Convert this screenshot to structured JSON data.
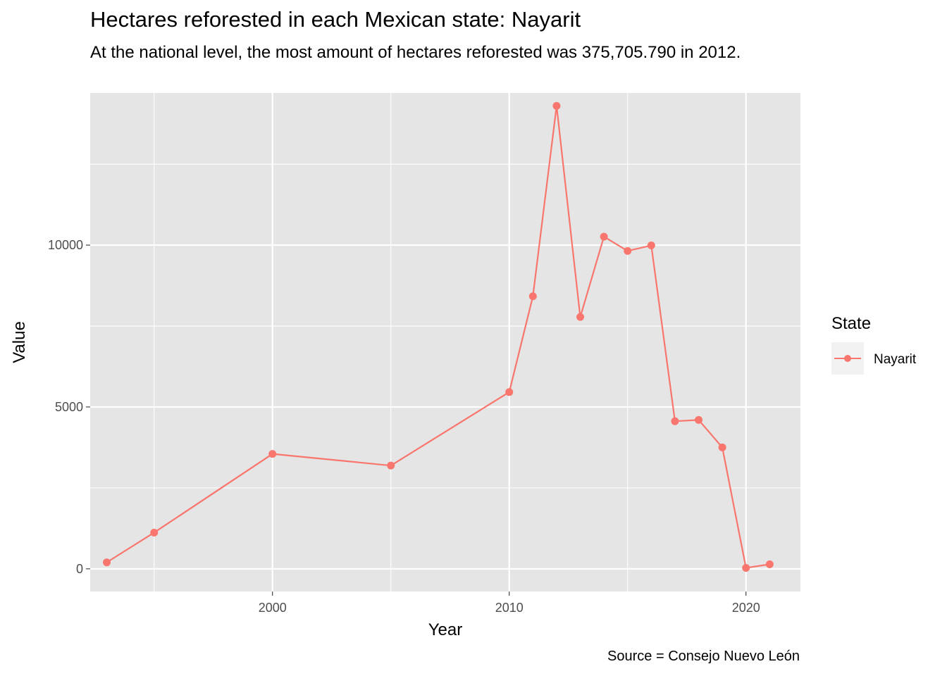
{
  "title": "Hectares reforested in each Mexican state: Nayarit",
  "subtitle": "At the national level, the most amount of hectares reforested was 375,705.790 in 2012.",
  "caption": "Source = Consejo Nuevo León",
  "colors": {
    "panel": "#e5e5e5",
    "grid": "#ffffff",
    "series": "#f8766d",
    "tick_text": "#4d4d4d",
    "legend_key": "#f2f2f2"
  },
  "chart_data": {
    "type": "line",
    "title": "Hectares reforested in each Mexican state: Nayarit",
    "subtitle": "At the national level, the most amount of hectares reforested was 375,705.790 in 2012.",
    "xlabel": "Year",
    "ylabel": "Value",
    "xlim": [
      1992.3,
      2022.3
    ],
    "ylim": [
      -700,
      14700
    ],
    "x_ticks": [
      2000,
      2010,
      2020
    ],
    "x_minor_ticks": [
      1995,
      2005,
      2015
    ],
    "y_ticks": [
      0,
      5000,
      10000
    ],
    "y_minor_ticks": [
      2500,
      7500,
      12500
    ],
    "x_tick_labels": [
      "2000",
      "2010",
      "2020"
    ],
    "y_tick_labels": [
      "0",
      "5000",
      "10000"
    ],
    "grid": true,
    "legend": {
      "title": "State",
      "position": "right",
      "entries": [
        "Nayarit"
      ]
    },
    "series": [
      {
        "name": "Nayarit",
        "x": [
          1993,
          1995,
          2000,
          2005,
          2010,
          2011,
          2012,
          2013,
          2014,
          2015,
          2016,
          2017,
          2018,
          2019,
          2020,
          2021
        ],
        "y": [
          200,
          1120,
          3550,
          3190,
          5460,
          8420,
          14300,
          7780,
          10260,
          9820,
          9990,
          4560,
          4600,
          3750,
          30,
          140
        ]
      }
    ]
  }
}
